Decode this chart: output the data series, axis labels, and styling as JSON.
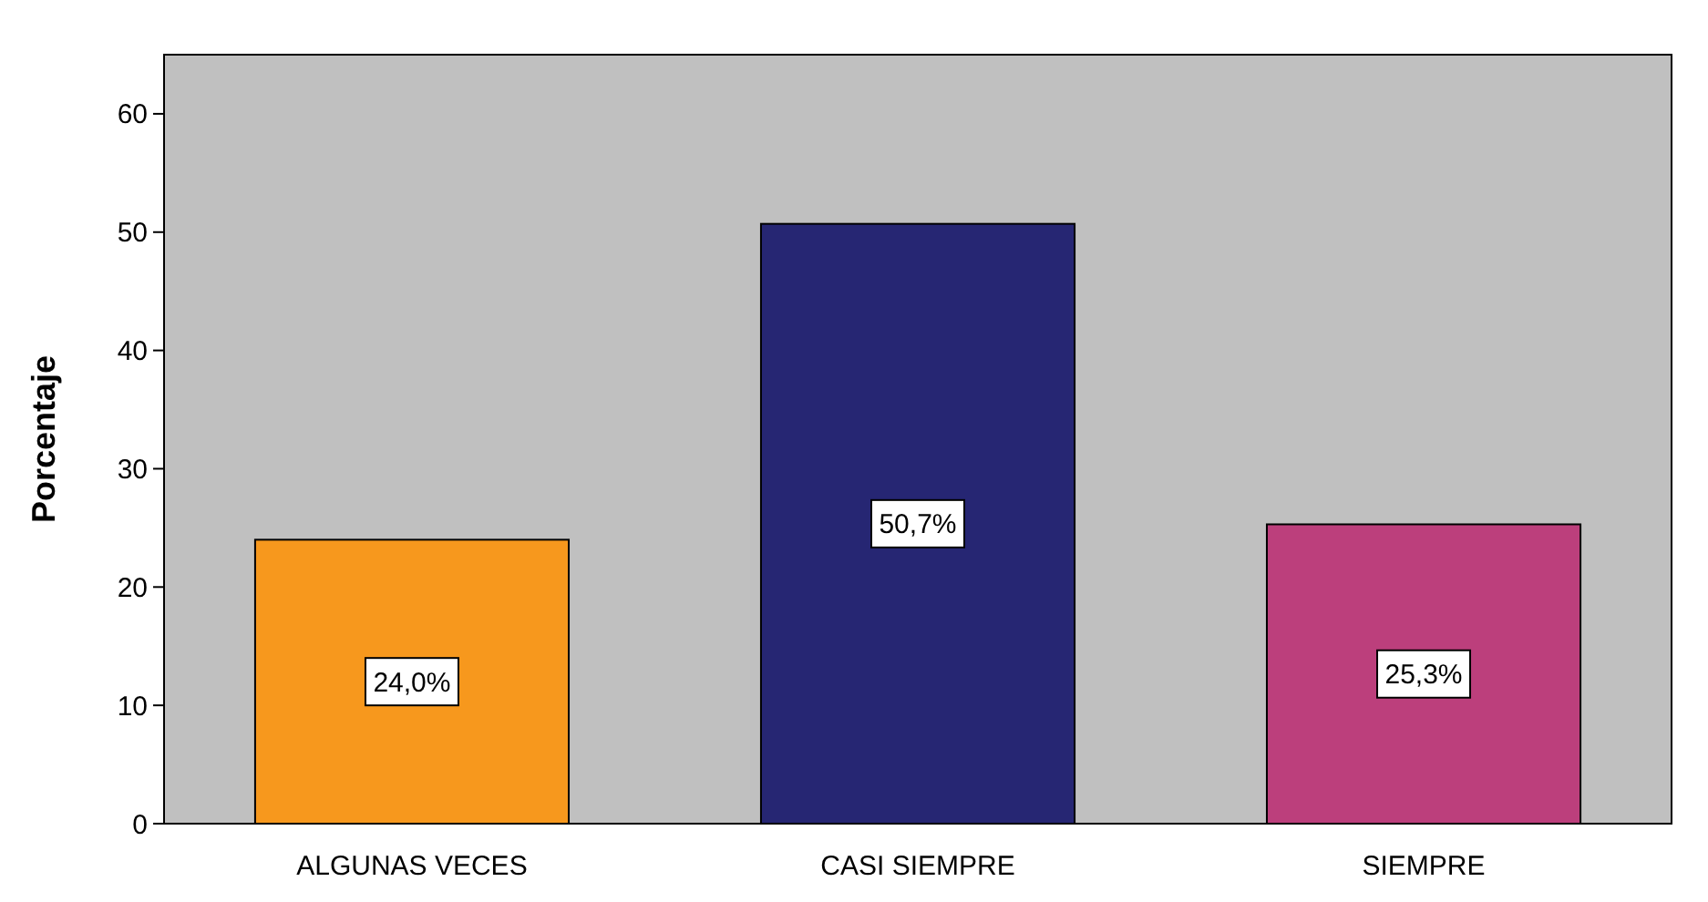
{
  "chart_data": {
    "type": "bar",
    "ylabel": "Porcentaje",
    "categories": [
      "ALGUNAS VECES",
      "CASI SIEMPRE",
      "SIEMPRE"
    ],
    "values": [
      24.0,
      50.7,
      25.3
    ],
    "colors": [
      "#f7981d",
      "#262673",
      "#bc3f7c"
    ],
    "value_labels": [
      "24,0%",
      "50,7%",
      "25,3%"
    ],
    "ylim": [
      0,
      65
    ],
    "yticks": [
      0,
      10,
      20,
      30,
      40,
      50,
      60
    ]
  }
}
